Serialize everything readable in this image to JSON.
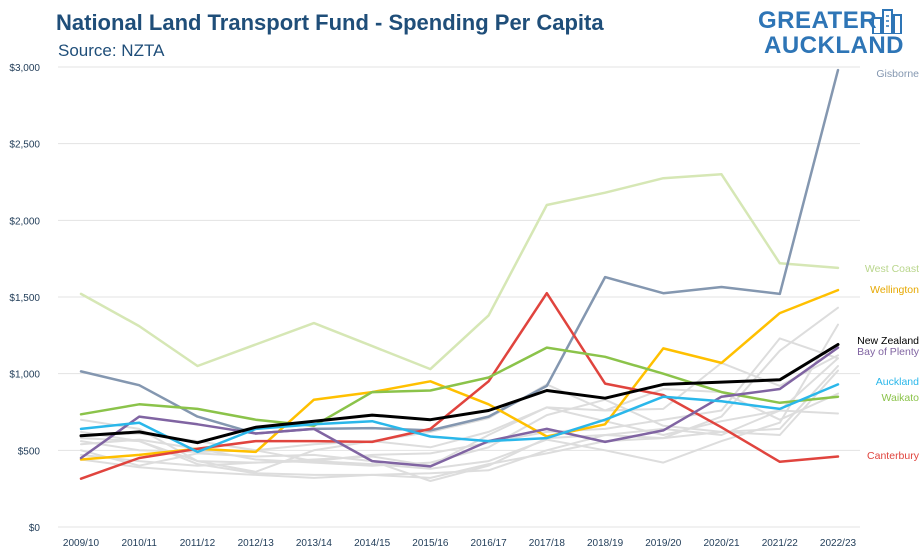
{
  "header": {
    "title": "National Land Transport Fund - Spending Per Capita",
    "subtitle": "Source: NZTA"
  },
  "logo": {
    "line1": "GREATER",
    "line2": "AUCKLAND",
    "icon": "city-skyline-icon",
    "color": "#2e75b6"
  },
  "chart_data": {
    "type": "line",
    "title": "National Land Transport Fund - Spending Per Capita",
    "subtitle": "Source: NZTA",
    "xlabel": "",
    "ylabel": "",
    "ylim": [
      0,
      3000
    ],
    "yticks": [
      0,
      500,
      1000,
      1500,
      2000,
      2500,
      3000
    ],
    "ytick_labels": [
      "$0",
      "$500",
      "$1,000",
      "$1,500",
      "$2,000",
      "$2,500",
      "$3,000"
    ],
    "grid": true,
    "legend": "direct labels at right end of lines",
    "x": [
      "2009/10",
      "2010/11",
      "2011/12",
      "2012/13",
      "2013/14",
      "2014/15",
      "2015/16",
      "2016/17",
      "2017/18",
      "2018/19",
      "2019/20",
      "2020/21",
      "2021/22",
      "2022/23"
    ],
    "background_series": [
      {
        "values": [
          580,
          560,
          430,
          420,
          430,
          410,
          380,
          430,
          570,
          500,
          420,
          560,
          680,
          1320
        ]
      },
      {
        "values": [
          600,
          610,
          560,
          500,
          540,
          560,
          520,
          620,
          780,
          690,
          600,
          690,
          760,
          1100
        ]
      },
      {
        "values": [
          620,
          560,
          410,
          350,
          340,
          340,
          320,
          410,
          480,
          560,
          580,
          620,
          640,
          1050
        ]
      },
      {
        "values": [
          500,
          400,
          480,
          460,
          470,
          430,
          300,
          400,
          580,
          600,
          580,
          720,
          1150,
          1430
        ]
      },
      {
        "values": [
          560,
          500,
          490,
          500,
          430,
          470,
          480,
          550,
          620,
          640,
          700,
          760,
          1230,
          1100
        ]
      },
      {
        "values": [
          440,
          390,
          360,
          340,
          320,
          340,
          350,
          370,
          500,
          600,
          640,
          600,
          760,
          740
        ]
      },
      {
        "values": [
          540,
          570,
          510,
          440,
          420,
          400,
          420,
          520,
          730,
          830,
          660,
          620,
          600,
          1020
        ]
      },
      {
        "values": [
          700,
          640,
          430,
          360,
          500,
          560,
          620,
          710,
          930,
          760,
          900,
          880,
          700,
          870
        ]
      },
      {
        "values": [
          470,
          430,
          400,
          420,
          440,
          460,
          400,
          600,
          780,
          760,
          770,
          1070,
          920,
          1120
        ]
      }
    ],
    "series": [
      {
        "name": "Gisborne",
        "color": "#8497b0",
        "width": 2.5,
        "values": [
          1015,
          925,
          720,
          610,
          640,
          645,
          630,
          720,
          920,
          1630,
          1525,
          1565,
          1520,
          2980
        ]
      },
      {
        "name": "West Coast",
        "color": "#d6e7b5",
        "width": 2.5,
        "values": [
          1520,
          1310,
          1050,
          1190,
          1330,
          1180,
          1030,
          1380,
          2100,
          2180,
          2275,
          2300,
          1720,
          1690
        ]
      },
      {
        "name": "Wellington",
        "color": "#ffc000",
        "width": 2.5,
        "values": [
          440,
          470,
          510,
          490,
          830,
          880,
          950,
          800,
          590,
          670,
          1165,
          1070,
          1395,
          1545
        ]
      },
      {
        "name": "Bay of Plenty",
        "color": "#8064a2",
        "width": 2.5,
        "values": [
          450,
          720,
          670,
          610,
          640,
          430,
          395,
          560,
          640,
          555,
          630,
          850,
          900,
          1170
        ]
      },
      {
        "name": "Auckland",
        "color": "#2ab7ea",
        "width": 2.5,
        "values": [
          640,
          680,
          490,
          640,
          670,
          690,
          590,
          560,
          580,
          700,
          850,
          820,
          770,
          930
        ]
      },
      {
        "name": "Waikato",
        "color": "#8bc34a",
        "width": 2.5,
        "values": [
          735,
          800,
          770,
          700,
          660,
          880,
          890,
          975,
          1170,
          1110,
          1000,
          880,
          810,
          850
        ]
      },
      {
        "name": "Canterbury",
        "color": "#e0443e",
        "width": 2.5,
        "values": [
          315,
          450,
          510,
          560,
          560,
          555,
          640,
          950,
          1525,
          935,
          860,
          650,
          425,
          460
        ]
      },
      {
        "name": "New Zealand",
        "color": "#000000",
        "width": 3,
        "values": [
          595,
          620,
          550,
          650,
          690,
          730,
          700,
          760,
          890,
          840,
          930,
          945,
          960,
          1190
        ]
      }
    ],
    "background_color": "#dddddd"
  }
}
